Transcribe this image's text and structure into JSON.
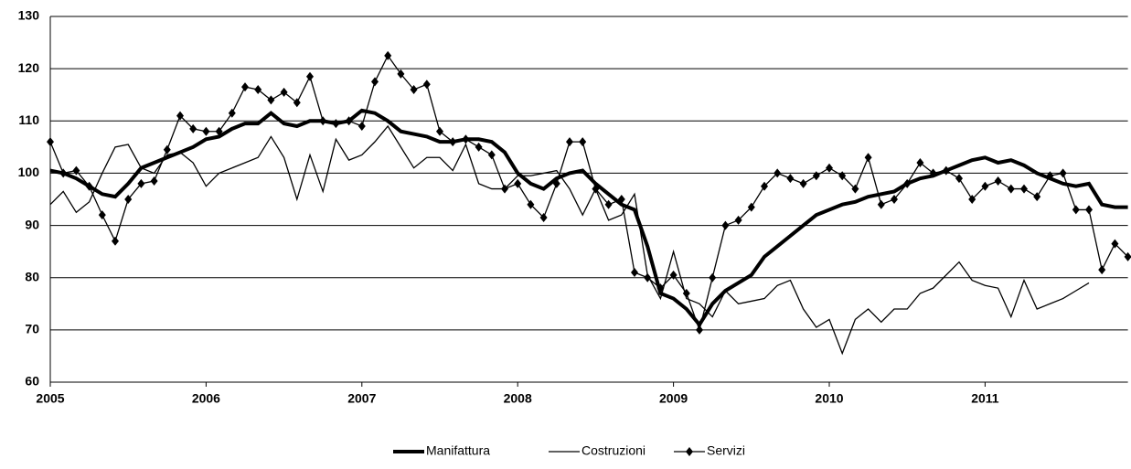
{
  "chart_data": {
    "type": "line",
    "categories": [
      "2005",
      null,
      null,
      null,
      null,
      null,
      null,
      null,
      null,
      null,
      null,
      null,
      "2006",
      null,
      null,
      null,
      null,
      null,
      null,
      null,
      null,
      null,
      null,
      null,
      "2007",
      null,
      null,
      null,
      null,
      null,
      null,
      null,
      null,
      null,
      null,
      null,
      "2008",
      null,
      null,
      null,
      null,
      null,
      null,
      null,
      null,
      null,
      null,
      null,
      "2009",
      null,
      null,
      null,
      null,
      null,
      null,
      null,
      null,
      null,
      null,
      null,
      "2010",
      null,
      null,
      null,
      null,
      null,
      null,
      null,
      null,
      null,
      null,
      null,
      "2011",
      null,
      null,
      null,
      null,
      null,
      null,
      null,
      null,
      null,
      null,
      null
    ],
    "series": [
      {
        "name": "Manifattura",
        "color": "#000000",
        "values": [
          100.5,
          100,
          99,
          97.5,
          96,
          95.5,
          98,
          101,
          102,
          103,
          104,
          105,
          106.5,
          107,
          108.5,
          109.5,
          109.5,
          111.5,
          109.5,
          109,
          110,
          110,
          109.5,
          110,
          112,
          111.5,
          110,
          108,
          107.5,
          107,
          106,
          106,
          106.5,
          106.5,
          106,
          104,
          100,
          98,
          97,
          99,
          100,
          100.5,
          98,
          96,
          94,
          93,
          86,
          77,
          76,
          74,
          71,
          75,
          77.5,
          79,
          80.5,
          84,
          86,
          88,
          90,
          92,
          93,
          94,
          94.5,
          95.5,
          96,
          96.5,
          98,
          99,
          99.5,
          100.5,
          101.5,
          102.5,
          103,
          102,
          102.5,
          101.5,
          100,
          99,
          98,
          97.5,
          98,
          94,
          93.5,
          93.5
        ]
      },
      {
        "name": "Costruzioni",
        "color": "#000000",
        "values": [
          94,
          96.5,
          92.5,
          94.5,
          100,
          105,
          105.5,
          101,
          100,
          103.5,
          104,
          102,
          97.5,
          100,
          101,
          102,
          103,
          107,
          103,
          95,
          103.5,
          96.5,
          106.5,
          102.5,
          103.5,
          106,
          109,
          105,
          101,
          103,
          103,
          100.5,
          105.5,
          98,
          97,
          97,
          99.5,
          99.5,
          100,
          100.5,
          97,
          92,
          97,
          91,
          92,
          96,
          80.5,
          76,
          85,
          76,
          75,
          72.5,
          77.5,
          75,
          75.5,
          76,
          78.5,
          79.5,
          74,
          70.5,
          72,
          65.5,
          72,
          74,
          71.5,
          74,
          74,
          77,
          78,
          80.5,
          83,
          79.5,
          78.5,
          78,
          72.5,
          79.5,
          74,
          75,
          76,
          77.5,
          79,
          null,
          null,
          null
        ]
      },
      {
        "name": "Servizi",
        "color": "#000000",
        "values": [
          106,
          100,
          100.5,
          97.5,
          92,
          87,
          95,
          98,
          98.5,
          104.5,
          111,
          108.5,
          108,
          108,
          111.5,
          116.5,
          116,
          114,
          115.5,
          113.5,
          118.5,
          110,
          109.5,
          110,
          109,
          117.5,
          122.5,
          119,
          116,
          117,
          108,
          106,
          106.5,
          105,
          103.5,
          97,
          98,
          94,
          91.5,
          98,
          106,
          106,
          97,
          94,
          95,
          81,
          80,
          78,
          80.5,
          77,
          70,
          80,
          90,
          91,
          93.5,
          97.5,
          100,
          99,
          98,
          99.5,
          101,
          99.5,
          97,
          103,
          94,
          95,
          98,
          102,
          100,
          100.5,
          99,
          95,
          97.5,
          98.5,
          97,
          97,
          95.5,
          99.5,
          100,
          93,
          93,
          81.5,
          86.5,
          84
        ]
      }
    ],
    "ylim": [
      60,
      130
    ],
    "yticks": [
      60,
      70,
      80,
      90,
      100,
      110,
      120,
      130
    ],
    "grid": true
  }
}
